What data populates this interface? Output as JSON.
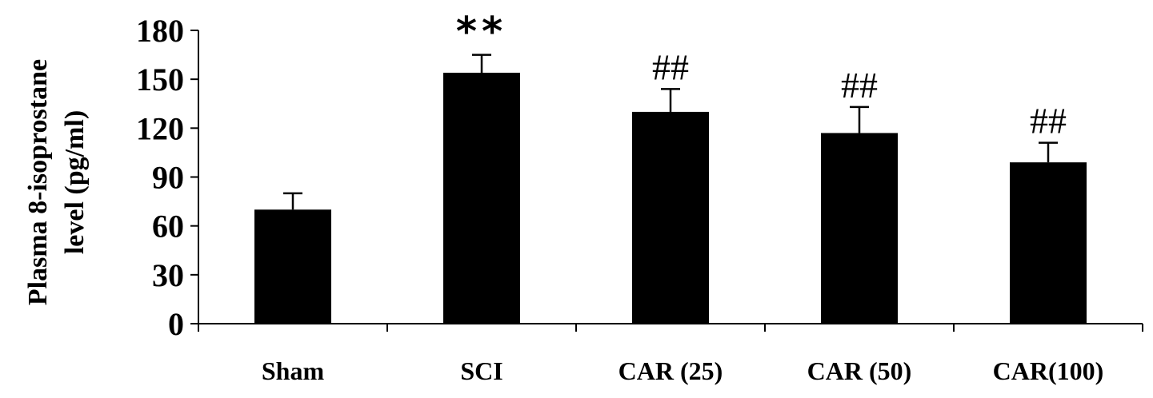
{
  "chart_data": {
    "type": "bar",
    "title": "",
    "ylabel_lines": [
      "Plasma 8-isoprostane",
      "level (pg/ml)"
    ],
    "xlabel": "",
    "categories": [
      "Sham",
      "SCI",
      "CAR (25)",
      "CAR (50)",
      "CAR(100)"
    ],
    "values": [
      70,
      154,
      130,
      117,
      99
    ],
    "errors": [
      10,
      11,
      14,
      16,
      12
    ],
    "annotations": [
      "",
      "**",
      "##",
      "##",
      "##"
    ],
    "ylim": [
      0,
      180
    ],
    "yticks": [
      0,
      30,
      60,
      90,
      120,
      150,
      180
    ],
    "grid": false,
    "bar_color": "#000000"
  }
}
